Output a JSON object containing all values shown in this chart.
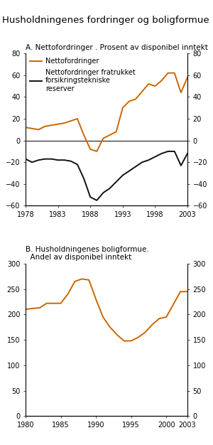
{
  "title": "Husholdningenes fordringer og boligformue",
  "panel_a_title": "A. Nettofordringer . Prosent av disponibel inntekt",
  "panel_b_title_line1": "B. Husholdningenes boligformue.",
  "panel_b_title_line2": "  Andel av disponibel inntekt",
  "orange_color": "#cc6600",
  "black_color": "#111111",
  "panel_a_orange_x": [
    1978,
    1979,
    1980,
    1981,
    1982,
    1983,
    1984,
    1985,
    1986,
    1987,
    1988,
    1989,
    1990,
    1991,
    1992,
    1993,
    1994,
    1995,
    1996,
    1997,
    1998,
    1999,
    2000,
    2001,
    2002,
    2003
  ],
  "panel_a_orange_y": [
    12,
    11,
    10,
    13,
    14,
    15,
    16,
    18,
    20,
    5,
    -8,
    -10,
    2,
    5,
    8,
    30,
    36,
    38,
    45,
    52,
    50,
    55,
    62,
    62,
    44,
    58
  ],
  "panel_a_black_x": [
    1978,
    1979,
    1980,
    1981,
    1982,
    1983,
    1984,
    1985,
    1986,
    1987,
    1988,
    1989,
    1990,
    1991,
    1992,
    1993,
    1994,
    1995,
    1996,
    1997,
    1998,
    1999,
    2000,
    2001,
    2002,
    2003
  ],
  "panel_a_black_y": [
    -17,
    -20,
    -18,
    -17,
    -17,
    -18,
    -18,
    -19,
    -22,
    -35,
    -52,
    -55,
    -48,
    -44,
    -38,
    -32,
    -28,
    -24,
    -20,
    -18,
    -15,
    -12,
    -10,
    -10,
    -23,
    -12
  ],
  "panel_a_ylim": [
    -60,
    80
  ],
  "panel_a_yticks": [
    -60,
    -40,
    -20,
    0,
    20,
    40,
    60,
    80
  ],
  "panel_a_xticks": [
    1978,
    1983,
    1988,
    1993,
    1998,
    2003
  ],
  "panel_b_orange_x": [
    1980,
    1981,
    1982,
    1983,
    1984,
    1985,
    1986,
    1987,
    1988,
    1989,
    1990,
    1991,
    1992,
    1993,
    1994,
    1995,
    1996,
    1997,
    1998,
    1999,
    2000,
    2001,
    2002,
    2003
  ],
  "panel_b_orange_y": [
    210,
    212,
    213,
    222,
    222,
    222,
    240,
    265,
    270,
    268,
    230,
    195,
    175,
    160,
    148,
    148,
    155,
    165,
    180,
    192,
    195,
    220,
    245,
    245
  ],
  "panel_b_ylim": [
    0,
    300
  ],
  "panel_b_yticks": [
    0,
    50,
    100,
    150,
    200,
    250,
    300
  ],
  "panel_b_xticks": [
    1980,
    1985,
    1990,
    1995,
    2000,
    2003
  ],
  "legend_a_orange": "Nettofordringer",
  "legend_a_black": "Nettofordringer fratrukket\nforsikringstekniske\nreserver",
  "bg_color": "#ffffff",
  "fontsize_title": 9.5,
  "fontsize_panel": 7.5,
  "fontsize_tick": 7,
  "fontsize_legend": 7
}
